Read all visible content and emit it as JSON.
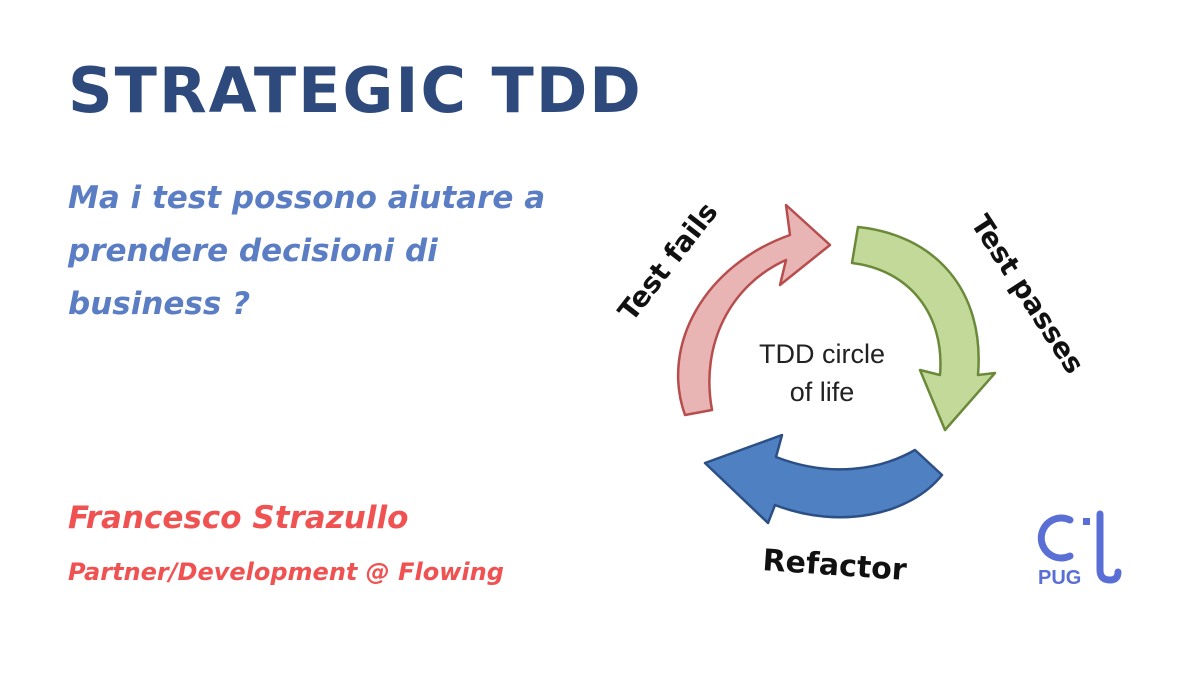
{
  "slide": {
    "title": "STRATEGIC TDD",
    "subtitle_lines": [
      "Ma i test possono aiutare a",
      "prendere decisioni di",
      "business ?"
    ],
    "author": "Francesco Strazullo",
    "role": "Partner/Development @ Flowing"
  },
  "diagram": {
    "center_line1": "TDD circle",
    "center_line2": "of life",
    "label_fails": "Test fails",
    "label_passes": "Test passes",
    "label_refactor": "Refactor",
    "colors": {
      "fails_fill": "#e8b4b4",
      "fails_stroke": "#b74d4d",
      "passes_fill": "#c3d99a",
      "passes_stroke": "#6a8a3a",
      "refactor_fill": "#4f80c2",
      "refactor_stroke": "#2c4f86"
    }
  },
  "logo": {
    "text": "PUG"
  }
}
